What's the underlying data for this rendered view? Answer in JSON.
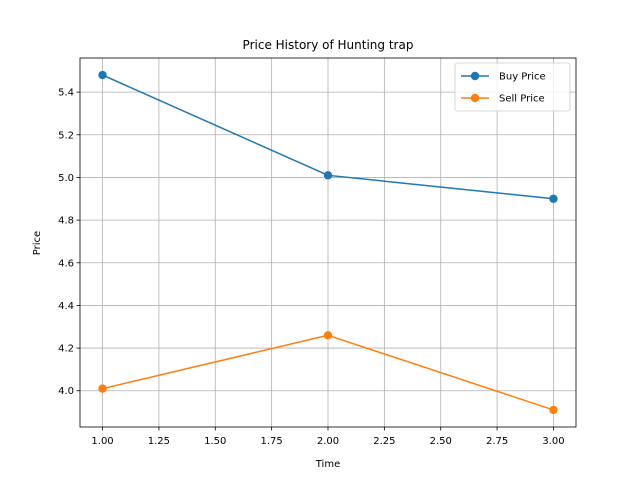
{
  "chart_data": {
    "type": "line",
    "title": "Price History of Hunting trap",
    "xlabel": "Time",
    "ylabel": "Price",
    "x": [
      1.0,
      2.0,
      3.0
    ],
    "xlim": [
      0.9,
      3.1
    ],
    "ylim": [
      3.83,
      5.56
    ],
    "xticks": [
      "1.00",
      "1.25",
      "1.50",
      "1.75",
      "2.00",
      "2.25",
      "2.50",
      "2.75",
      "3.00"
    ],
    "yticks": [
      "4.0",
      "4.2",
      "4.4",
      "4.6",
      "4.8",
      "5.0",
      "5.2",
      "5.4"
    ],
    "grid": true,
    "legend_position": "top-right",
    "series": [
      {
        "name": "Buy Price",
        "values": [
          5.48,
          5.01,
          4.9
        ],
        "color": "#1f77b4",
        "marker": "circle"
      },
      {
        "name": "Sell Price",
        "values": [
          4.01,
          4.26,
          3.91
        ],
        "color": "#ff7f0e",
        "marker": "circle"
      }
    ]
  }
}
